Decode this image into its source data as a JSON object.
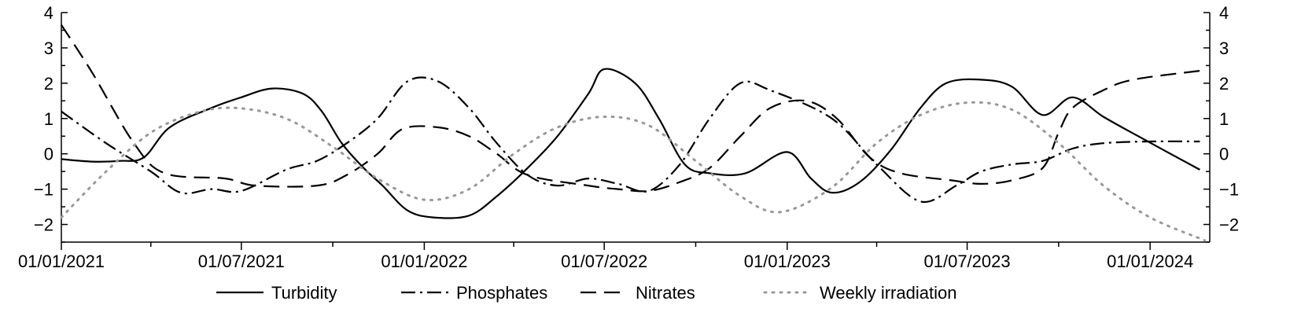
{
  "chart_data": {
    "type": "line",
    "title": "",
    "xlabel": "",
    "ylabel": "",
    "xlim": [
      "2021-01-01",
      "2024-03-01"
    ],
    "ylim": [
      -2.5,
      4
    ],
    "y_ticks": [
      -2,
      -1,
      0,
      1,
      2,
      3,
      4
    ],
    "y_tick_labels": [
      "−2",
      "−1",
      "0",
      "1",
      "2",
      "3",
      "4"
    ],
    "secondary_y_ticks": [
      -2,
      -1,
      0,
      1,
      2,
      3,
      4
    ],
    "secondary_y_tick_labels": [
      "−2",
      "−1",
      "0",
      "1",
      "2",
      "3",
      "4"
    ],
    "x_major_ticks": [
      "2021-01-01",
      "2021-07-01",
      "2022-01-01",
      "2022-07-01",
      "2023-01-01",
      "2023-07-01",
      "2024-01-01"
    ],
    "x_tick_labels": [
      "01/01/2021",
      "01/07/2021",
      "01/01/2022",
      "01/07/2022",
      "01/01/2023",
      "01/07/2023",
      "01/01/2024"
    ],
    "x_minor_ticks": [
      "2021-04-01",
      "2021-10-01",
      "2022-04-01",
      "2022-10-01",
      "2023-04-01",
      "2023-10-01"
    ],
    "grid": false,
    "legend_position": "bottom",
    "series": [
      {
        "name": "Turbidity",
        "style": "solid",
        "color": "#000000",
        "points": [
          [
            "2021-01-01",
            -0.15
          ],
          [
            "2021-02-01",
            -0.22
          ],
          [
            "2021-03-01",
            -0.2
          ],
          [
            "2021-03-25",
            -0.1
          ],
          [
            "2021-04-20",
            0.75
          ],
          [
            "2021-06-01",
            1.3
          ],
          [
            "2021-07-01",
            1.6
          ],
          [
            "2021-08-01",
            1.85
          ],
          [
            "2021-09-01",
            1.7
          ],
          [
            "2021-09-20",
            1.2
          ],
          [
            "2021-10-10",
            0.3
          ],
          [
            "2021-11-01",
            -0.4
          ],
          [
            "2021-11-20",
            -0.9
          ],
          [
            "2021-12-15",
            -1.6
          ],
          [
            "2022-01-10",
            -1.8
          ],
          [
            "2022-02-15",
            -1.75
          ],
          [
            "2022-03-15",
            -1.2
          ],
          [
            "2022-04-15",
            -0.4
          ],
          [
            "2022-05-15",
            0.5
          ],
          [
            "2022-06-15",
            1.7
          ],
          [
            "2022-07-01",
            2.4
          ],
          [
            "2022-08-01",
            2.0
          ],
          [
            "2022-08-25",
            1.0
          ],
          [
            "2022-09-20",
            -0.3
          ],
          [
            "2022-10-15",
            -0.55
          ],
          [
            "2022-11-20",
            -0.55
          ],
          [
            "2023-01-01",
            0.05
          ],
          [
            "2023-01-25",
            -0.7
          ],
          [
            "2023-02-15",
            -1.1
          ],
          [
            "2023-03-15",
            -0.8
          ],
          [
            "2023-04-15",
            0.1
          ],
          [
            "2023-05-15",
            1.3
          ],
          [
            "2023-06-10",
            2.0
          ],
          [
            "2023-07-15",
            2.1
          ],
          [
            "2023-08-15",
            1.9
          ],
          [
            "2023-09-15",
            1.1
          ],
          [
            "2023-10-15",
            1.6
          ],
          [
            "2023-11-15",
            1.05
          ],
          [
            "2023-12-20",
            0.5
          ],
          [
            "2024-02-20",
            -0.45
          ]
        ]
      },
      {
        "name": "Phosphates",
        "style": "dash-dot",
        "color": "#000000",
        "points": [
          [
            "2021-01-01",
            1.2
          ],
          [
            "2021-02-15",
            0.3
          ],
          [
            "2021-04-01",
            -0.5
          ],
          [
            "2021-05-01",
            -1.1
          ],
          [
            "2021-06-01",
            -1.0
          ],
          [
            "2021-07-01",
            -1.05
          ],
          [
            "2021-08-15",
            -0.45
          ],
          [
            "2021-09-15",
            -0.2
          ],
          [
            "2021-10-15",
            0.3
          ],
          [
            "2021-11-15",
            1.0
          ],
          [
            "2021-12-15",
            2.05
          ],
          [
            "2022-01-15",
            2.05
          ],
          [
            "2022-02-15",
            1.3
          ],
          [
            "2022-03-15",
            0.3
          ],
          [
            "2022-04-15",
            -0.6
          ],
          [
            "2022-05-15",
            -0.9
          ],
          [
            "2022-06-15",
            -0.7
          ],
          [
            "2022-07-15",
            -0.85
          ],
          [
            "2022-08-15",
            -1.05
          ],
          [
            "2022-09-15",
            -0.3
          ],
          [
            "2022-10-15",
            1.0
          ],
          [
            "2022-11-15",
            2.0
          ],
          [
            "2022-12-15",
            1.8
          ],
          [
            "2023-02-15",
            1.0
          ],
          [
            "2023-04-01",
            -0.3
          ],
          [
            "2023-05-15",
            -1.35
          ],
          [
            "2023-06-20",
            -0.9
          ],
          [
            "2023-07-15",
            -0.5
          ],
          [
            "2023-08-15",
            -0.3
          ],
          [
            "2023-09-15",
            -0.2
          ],
          [
            "2023-10-15",
            0.15
          ],
          [
            "2023-11-15",
            0.3
          ],
          [
            "2024-01-01",
            0.35
          ],
          [
            "2024-02-20",
            0.35
          ]
        ]
      },
      {
        "name": "Nitrates",
        "style": "dashed",
        "color": "#000000",
        "points": [
          [
            "2021-01-01",
            3.65
          ],
          [
            "2021-02-01",
            2.3
          ],
          [
            "2021-03-15",
            0.3
          ],
          [
            "2021-04-15",
            -0.55
          ],
          [
            "2021-06-15",
            -0.7
          ],
          [
            "2021-07-15",
            -0.9
          ],
          [
            "2021-09-15",
            -0.9
          ],
          [
            "2021-10-15",
            -0.6
          ],
          [
            "2021-11-15",
            0.0
          ],
          [
            "2021-12-10",
            0.7
          ],
          [
            "2022-01-15",
            0.75
          ],
          [
            "2022-02-15",
            0.5
          ],
          [
            "2022-03-15",
            0.0
          ],
          [
            "2022-04-15",
            -0.6
          ],
          [
            "2022-06-15",
            -0.9
          ],
          [
            "2022-07-15",
            -1.0
          ],
          [
            "2022-08-15",
            -1.05
          ],
          [
            "2022-09-15",
            -0.8
          ],
          [
            "2022-10-15",
            -0.4
          ],
          [
            "2022-11-15",
            0.5
          ],
          [
            "2022-12-15",
            1.3
          ],
          [
            "2023-01-20",
            1.5
          ],
          [
            "2023-02-20",
            1.0
          ],
          [
            "2023-03-25",
            -0.1
          ],
          [
            "2023-04-25",
            -0.55
          ],
          [
            "2023-06-15",
            -0.75
          ],
          [
            "2023-07-15",
            -0.85
          ],
          [
            "2023-08-15",
            -0.75
          ],
          [
            "2023-09-15",
            -0.4
          ],
          [
            "2023-10-01",
            0.6
          ],
          [
            "2023-10-15",
            1.3
          ],
          [
            "2023-11-15",
            1.8
          ],
          [
            "2023-12-15",
            2.1
          ],
          [
            "2024-02-20",
            2.35
          ]
        ]
      },
      {
        "name": "Weekly irradiation",
        "style": "dotted",
        "color": "#999999",
        "points": [
          [
            "2021-01-01",
            -1.8
          ],
          [
            "2021-02-15",
            -0.5
          ],
          [
            "2021-04-01",
            0.6
          ],
          [
            "2021-05-15",
            1.15
          ],
          [
            "2021-06-25",
            1.3
          ],
          [
            "2021-08-15",
            1.0
          ],
          [
            "2021-10-01",
            0.2
          ],
          [
            "2021-11-15",
            -0.7
          ],
          [
            "2022-01-01",
            -1.3
          ],
          [
            "2022-02-15",
            -1.0
          ],
          [
            "2022-04-01",
            0.0
          ],
          [
            "2022-05-15",
            0.75
          ],
          [
            "2022-07-01",
            1.05
          ],
          [
            "2022-08-15",
            0.8
          ],
          [
            "2022-10-01",
            -0.2
          ],
          [
            "2022-11-15",
            -1.2
          ],
          [
            "2022-12-25",
            -1.65
          ],
          [
            "2023-02-15",
            -0.95
          ],
          [
            "2023-04-01",
            0.3
          ],
          [
            "2023-05-15",
            1.1
          ],
          [
            "2023-07-01",
            1.45
          ],
          [
            "2023-08-15",
            1.25
          ],
          [
            "2023-10-01",
            0.3
          ],
          [
            "2023-11-15",
            -0.9
          ],
          [
            "2024-01-01",
            -1.8
          ],
          [
            "2024-02-25",
            -2.45
          ]
        ]
      }
    ]
  }
}
